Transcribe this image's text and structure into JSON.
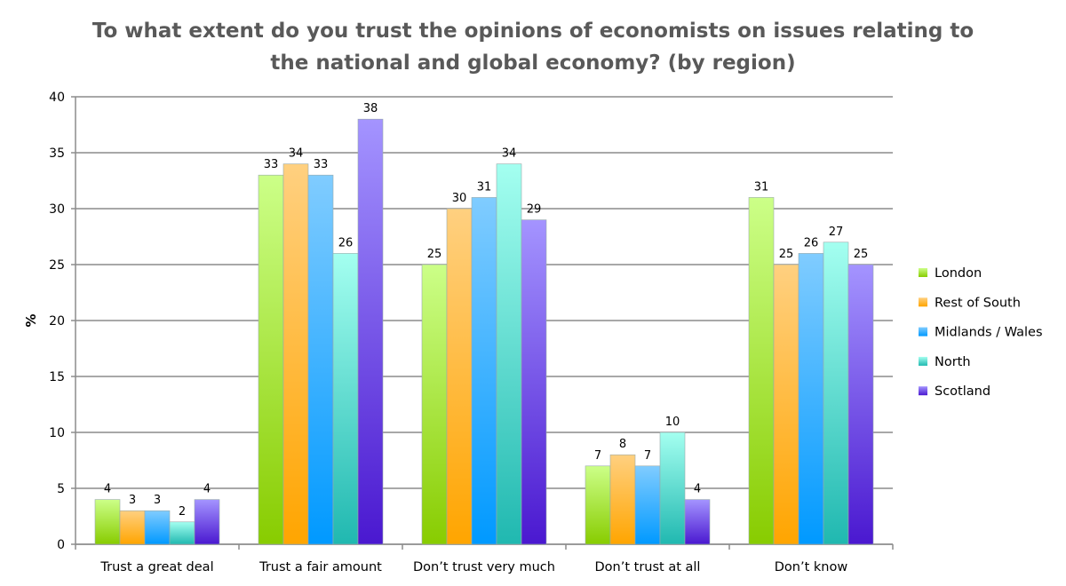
{
  "chart_data": {
    "type": "bar",
    "title_lines": [
      "To what extent do you trust the opinions of economists on issues relating to",
      "the national and global economy? (by region)"
    ],
    "xlabel": "",
    "ylabel": "%",
    "ylim": [
      0,
      40
    ],
    "yticks": [
      0,
      5,
      10,
      15,
      20,
      25,
      30,
      35,
      40
    ],
    "grid": true,
    "legend_position": "right",
    "categories": [
      "Trust a great deal",
      "Trust a fair amount",
      "Don’t trust very much",
      "Don’t trust at all",
      "Don’t know"
    ],
    "series": [
      {
        "name": "London",
        "values": [
          4,
          33,
          25,
          7,
          31
        ],
        "color_top": "#ccff88",
        "color_bottom": "#88cc00"
      },
      {
        "name": "Rest of South",
        "values": [
          3,
          34,
          30,
          8,
          25
        ],
        "color_top": "#ffd080",
        "color_bottom": "#ffa500"
      },
      {
        "name": "Midlands / Wales",
        "values": [
          3,
          33,
          31,
          7,
          26
        ],
        "color_top": "#80ccff",
        "color_bottom": "#0099ff"
      },
      {
        "name": "North",
        "values": [
          2,
          26,
          34,
          10,
          27
        ],
        "color_top": "#a4fff0",
        "color_bottom": "#20b8b0"
      },
      {
        "name": "Scotland",
        "values": [
          4,
          38,
          29,
          4,
          25
        ],
        "color_top": "#a494ff",
        "color_bottom": "#4a18d0"
      }
    ]
  }
}
